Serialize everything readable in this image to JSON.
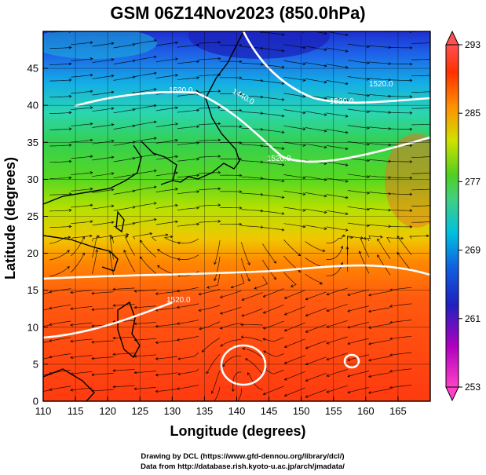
{
  "chart_data": {
    "type": "heatmap",
    "title": "GSM 06Z14Nov2023 (850.0hPa)",
    "xlabel": "Longitude (degrees)",
    "ylabel": "Latitude  (degrees)",
    "xlim": [
      110,
      170
    ],
    "ylim": [
      0,
      50
    ],
    "x_ticks": [
      "110",
      "115",
      "120",
      "125",
      "130",
      "135",
      "140",
      "145",
      "150",
      "155",
      "160",
      "165"
    ],
    "y_ticks": [
      "0",
      "5",
      "10",
      "15",
      "20",
      "25",
      "30",
      "35",
      "40",
      "45"
    ],
    "grid": true,
    "colorbar": {
      "placement": "right",
      "min": 253,
      "max": 293,
      "ticks": [
        "293",
        "285",
        "277",
        "269",
        "261",
        "253"
      ],
      "colors": [
        "#ff40c8",
        "#b000c0",
        "#2020c0",
        "#1060e0",
        "#00c0e0",
        "#40d080",
        "#50d020",
        "#d0e000",
        "#ff9000",
        "#ff3000",
        "#ff5050"
      ]
    },
    "temperature_field": {
      "units": "K",
      "by_latitude": [
        {
          "lat": 0,
          "value": 291
        },
        {
          "lat": 10,
          "value": 290
        },
        {
          "lat": 18,
          "value": 288
        },
        {
          "lat": 22,
          "value": 285
        },
        {
          "lat": 27,
          "value": 281
        },
        {
          "lat": 32,
          "value": 277
        },
        {
          "lat": 38,
          "value": 273
        },
        {
          "lat": 43,
          "value": 268
        },
        {
          "lat": 48,
          "value": 263
        },
        {
          "lat": 50,
          "value": 261
        }
      ]
    },
    "contour_labels": [
      "1440.0",
      "1520.0",
      "1520.0",
      "1520.0",
      "1520.0",
      "1520.0"
    ],
    "overlay": "streamlines"
  },
  "credits": {
    "line1": "Drawing by DCL (https://www.gfd-dennou.org/library/dcl/)",
    "line2": "Data from http://database.rish.kyoto-u.ac.jp/arch/jmadata/"
  },
  "colors": {
    "contour": "#ffffff",
    "coast": "#000000",
    "stream": "#000000"
  }
}
